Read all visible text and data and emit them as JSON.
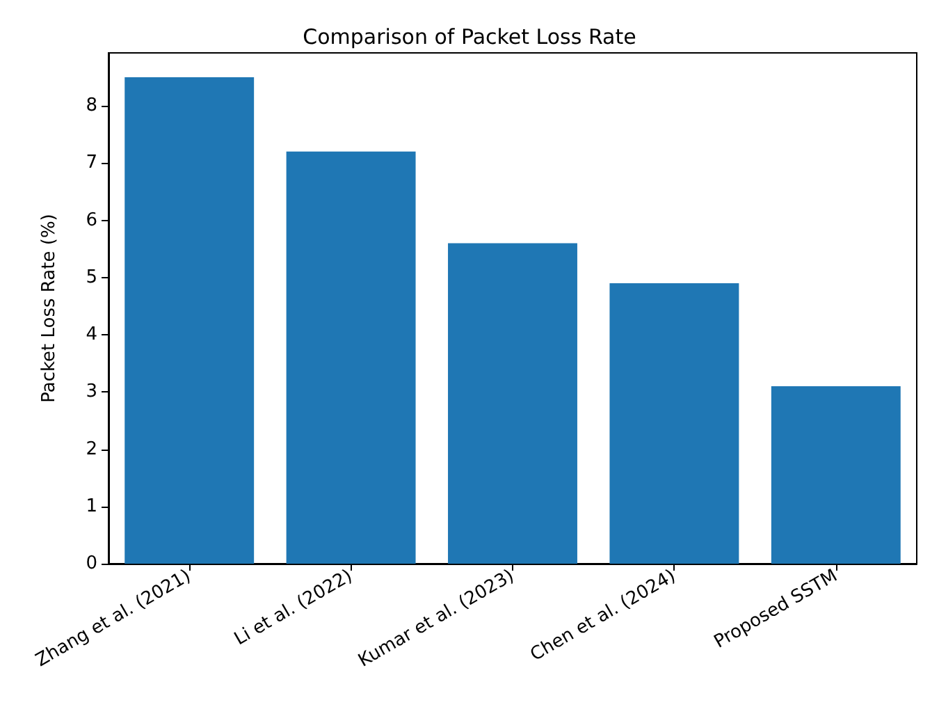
{
  "chart_data": {
    "type": "bar",
    "title": "Comparison of Packet Loss Rate",
    "ylabel": "Packet Loss Rate (%)",
    "categories": [
      "Zhang et al. (2021)",
      "Li et al. (2022)",
      "Kumar et al. (2023)",
      "Chen et al. (2024)",
      "Proposed SSTM"
    ],
    "values": [
      8.5,
      7.2,
      5.6,
      4.9,
      3.1
    ],
    "color": "#1f77b4",
    "ylim": [
      0,
      8.925
    ],
    "yticks": [
      0,
      1,
      2,
      3,
      4,
      5,
      6,
      7,
      8
    ],
    "grid": false
  }
}
